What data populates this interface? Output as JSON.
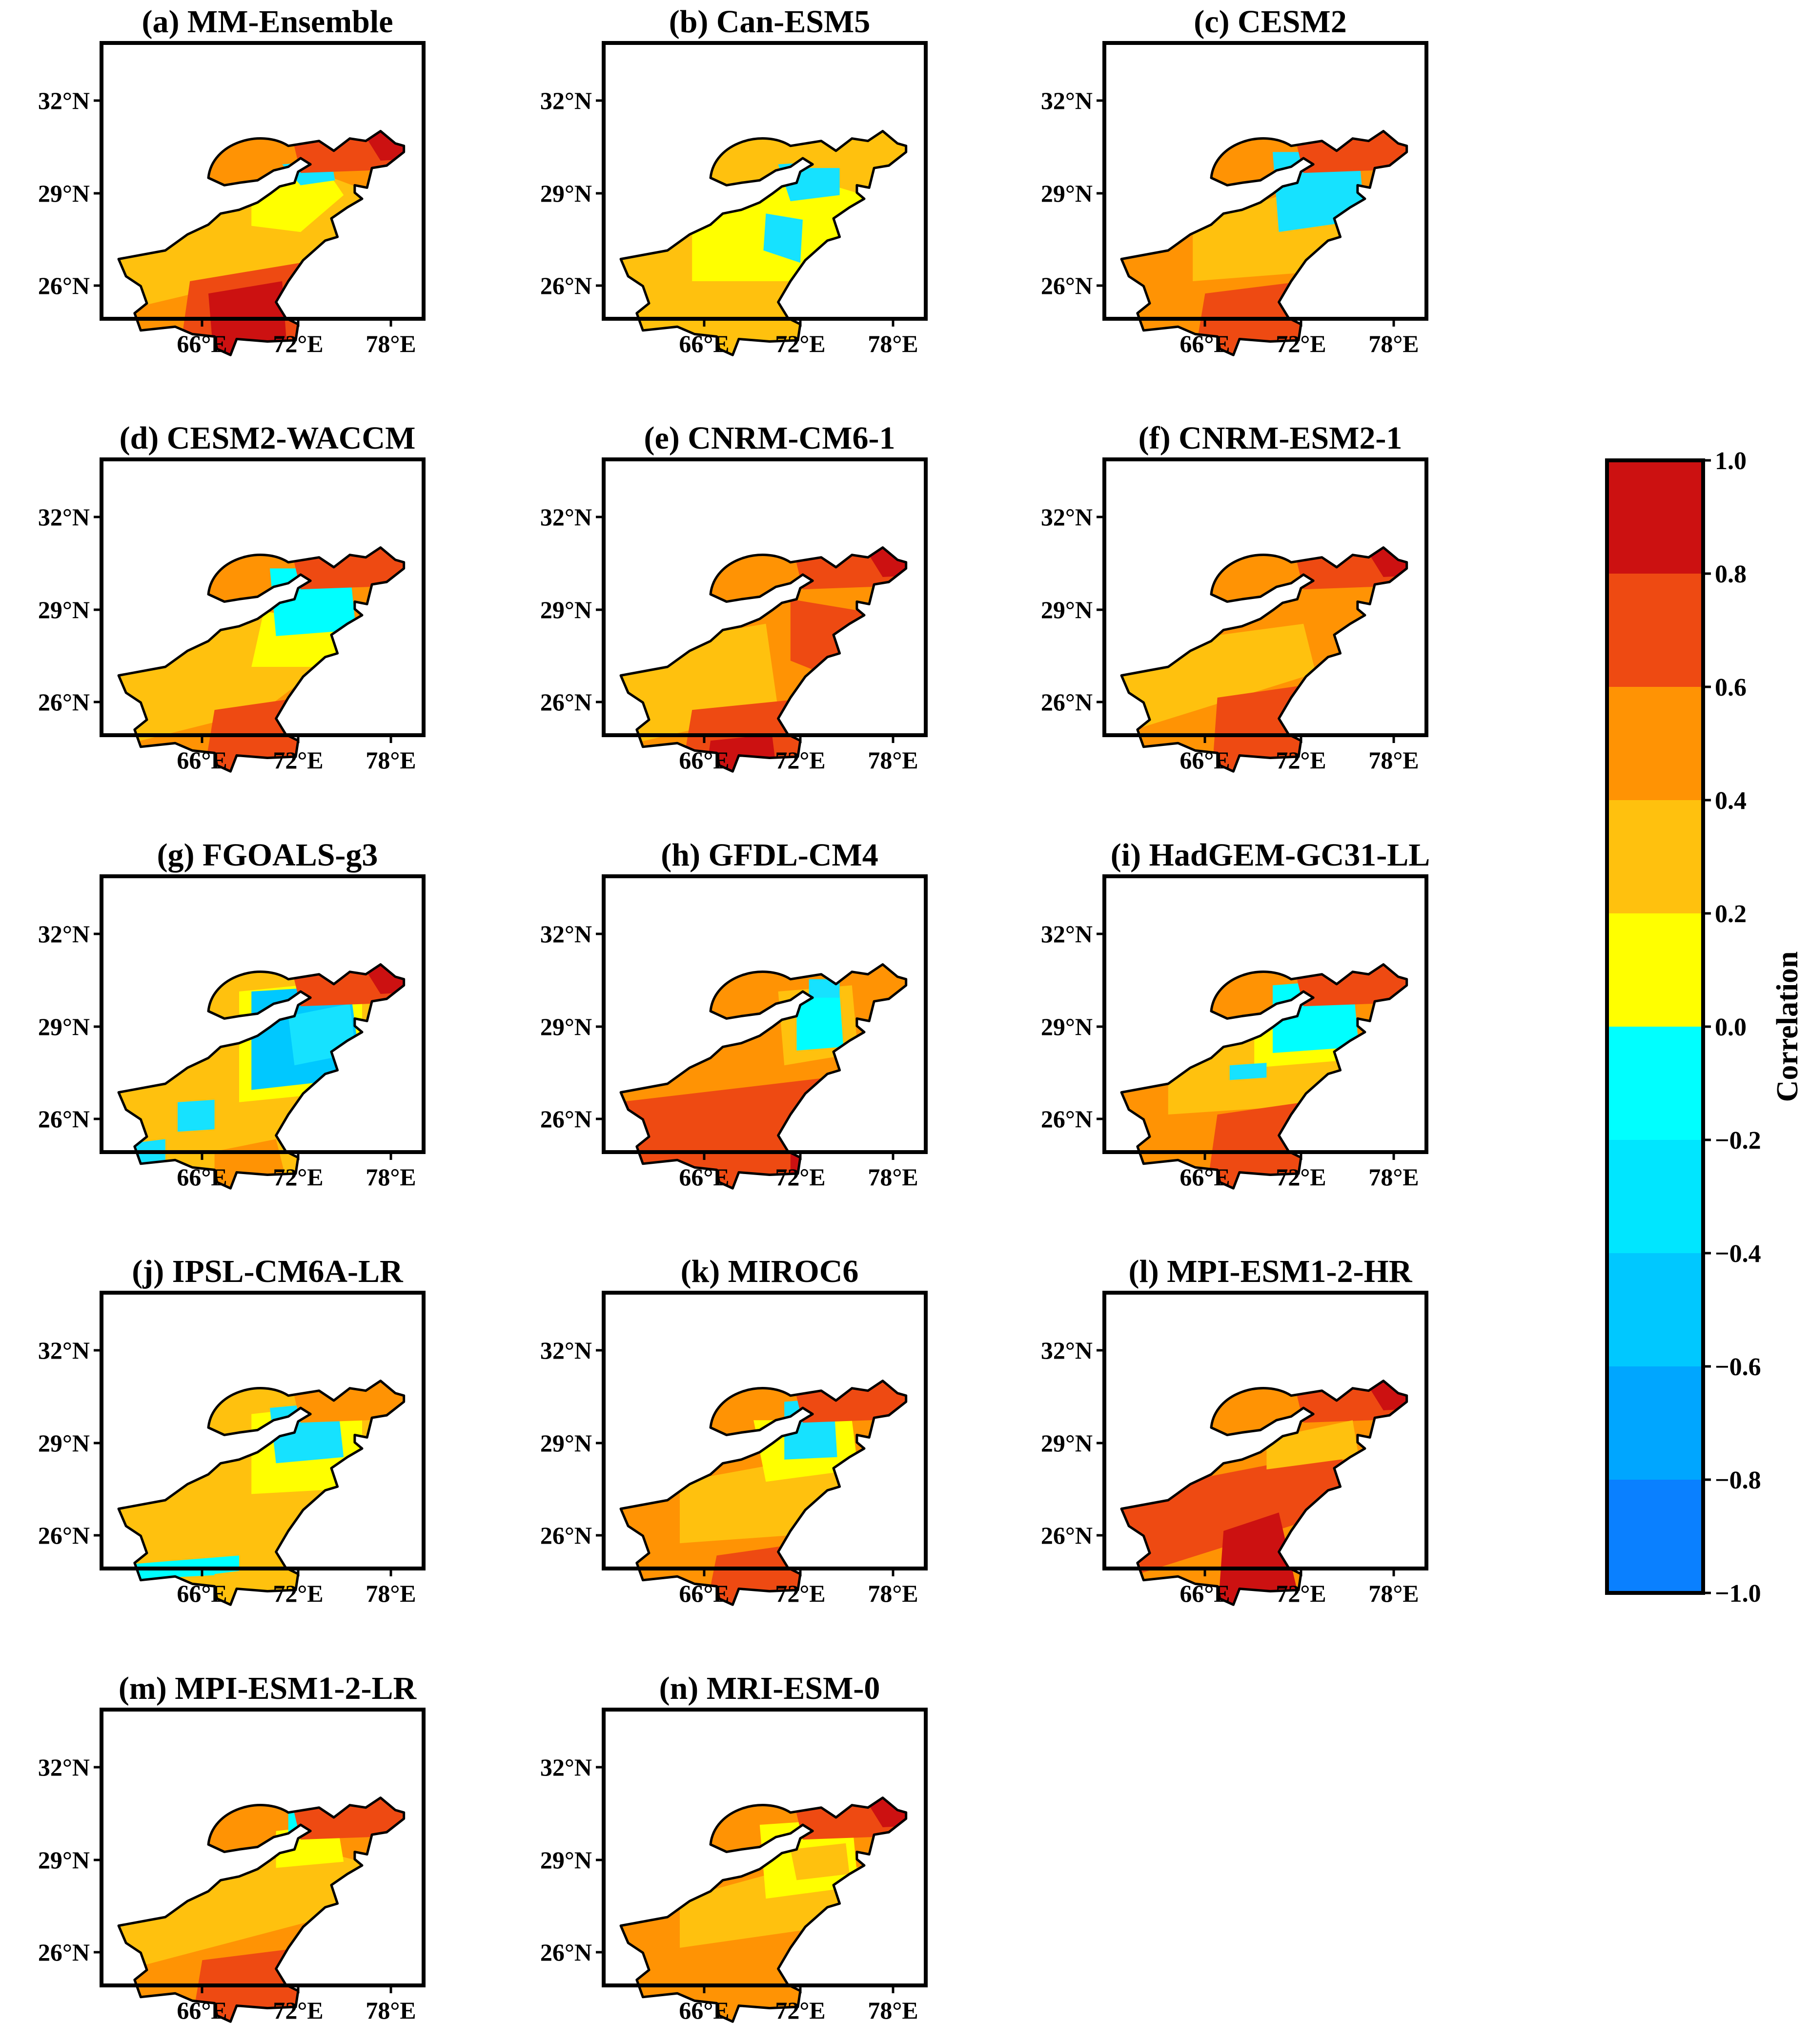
{
  "figure": {
    "panels": [
      {
        "title": "(a) MM-Ensemble",
        "scheme": "a"
      },
      {
        "title": "(b) Can-ESM5",
        "scheme": "b"
      },
      {
        "title": "(c) CESM2",
        "scheme": "c"
      },
      {
        "title": "(d) CESM2-WACCM",
        "scheme": "d"
      },
      {
        "title": "(e) CNRM-CM6-1",
        "scheme": "e"
      },
      {
        "title": "(f) CNRM-ESM2-1",
        "scheme": "f"
      },
      {
        "title": "(g) FGOALS-g3",
        "scheme": "g"
      },
      {
        "title": "(h) GFDL-CM4",
        "scheme": "h"
      },
      {
        "title": "(i) HadGEM-GC31-LL",
        "scheme": "i"
      },
      {
        "title": "(j) IPSL-CM6A-LR",
        "scheme": "j"
      },
      {
        "title": "(k) MIROC6",
        "scheme": "k"
      },
      {
        "title": "(l) MPI-ESM1-2-HR",
        "scheme": "l"
      },
      {
        "title": "(m) MPI-ESM1-2-LR",
        "scheme": "m"
      },
      {
        "title": "(n) MRI-ESM-0",
        "scheme": "n"
      }
    ],
    "lat_ticks": [
      "32°N",
      "29°N",
      "26°N"
    ],
    "lon_ticks": [
      "66°E",
      "72°E",
      "78°E"
    ]
  },
  "colorbar": {
    "label": "Correlation",
    "ticks": [
      "1.0",
      "0.8",
      "0.6",
      "0.4",
      "0.2",
      "0.0",
      "−0.2",
      "−0.4",
      "−0.6",
      "−0.8",
      "−1.0"
    ],
    "levels": [
      {
        "from": 0.8,
        "to": 1.0,
        "color": "#cc1111"
      },
      {
        "from": 0.6,
        "to": 0.8,
        "color": "#ee4a12"
      },
      {
        "from": 0.4,
        "to": 0.6,
        "color": "#ff9304"
      },
      {
        "from": 0.2,
        "to": 0.4,
        "color": "#ffc10e"
      },
      {
        "from": 0.0,
        "to": 0.2,
        "color": "#ffff00"
      },
      {
        "from": -0.2,
        "to": 0.0,
        "color": "#00ffff"
      },
      {
        "from": -0.4,
        "to": -0.2,
        "color": "#00e6ff"
      },
      {
        "from": -0.6,
        "to": -0.4,
        "color": "#00c8ff"
      },
      {
        "from": -0.8,
        "to": -0.6,
        "color": "#00a6ff"
      },
      {
        "from": -1.0,
        "to": -0.8,
        "color": "#0a80ff"
      }
    ]
  },
  "colors": {
    "dark_red": "#cc1111",
    "red_orange": "#ee4a12",
    "orange": "#ff9304",
    "light_orange": "#ffc10e",
    "yellow": "#ffff00",
    "cyan": "#00ffff",
    "light_blue": "#16e2ff",
    "sky_blue": "#00c8ff"
  }
}
